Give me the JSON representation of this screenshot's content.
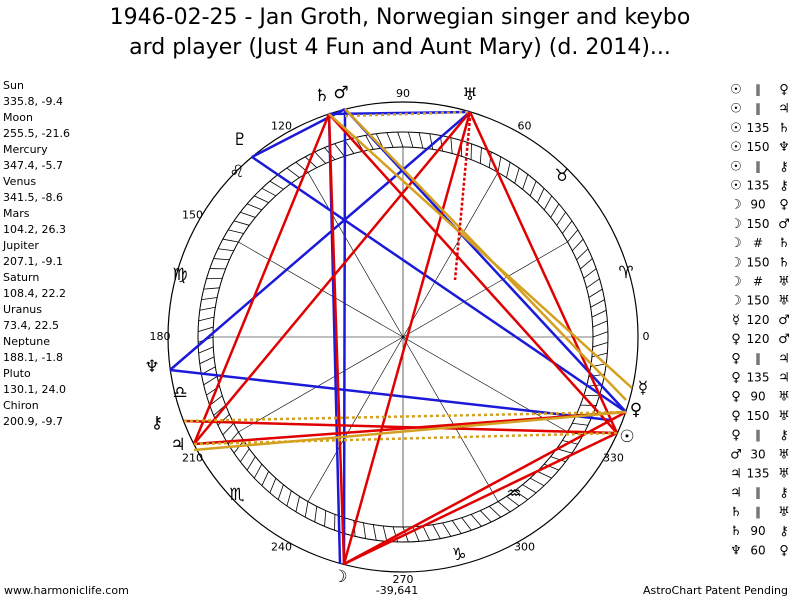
{
  "header": {
    "title_line1": "1946-02-25 - Jan Groth, Norwegian singer and keybo",
    "title_line2": "ard player (Just 4 Fun and Aunt Mary) (d. 2014)..."
  },
  "planets": [
    {
      "name": "Sun",
      "position": "335.8, -9.4"
    },
    {
      "name": "Moon",
      "position": "255.5, -21.6"
    },
    {
      "name": "Mercury",
      "position": "347.4, -5.7"
    },
    {
      "name": "Venus",
      "position": "341.5, -8.6"
    },
    {
      "name": "Mars",
      "position": "104.2, 26.3"
    },
    {
      "name": "Jupiter",
      "position": "207.1, -9.1"
    },
    {
      "name": "Saturn",
      "position": "108.4, 22.2"
    },
    {
      "name": "Uranus",
      "position": "73.4, 22.5"
    },
    {
      "name": "Neptune",
      "position": "188.1, -1.8"
    },
    {
      "name": "Pluto",
      "position": "130.1, 24.0"
    },
    {
      "name": "Chiron",
      "position": "200.9, -9.7"
    }
  ],
  "aspects": [
    {
      "planet1": "☉",
      "aspect": "∥",
      "planet2": "♀"
    },
    {
      "planet1": "☉",
      "aspect": "∥",
      "planet2": "♃"
    },
    {
      "planet1": "☉",
      "aspect": "135",
      "planet2": "♄"
    },
    {
      "planet1": "☉",
      "aspect": "150",
      "planet2": "♆"
    },
    {
      "planet1": "☉",
      "aspect": "∥",
      "planet2": "⚷"
    },
    {
      "planet1": "☉",
      "aspect": "135",
      "planet2": "⚷"
    },
    {
      "planet1": "☽",
      "aspect": "90",
      "planet2": "♀"
    },
    {
      "planet1": "☽",
      "aspect": "150",
      "planet2": "♂"
    },
    {
      "planet1": "☽",
      "aspect": "#",
      "planet2": "♄"
    },
    {
      "planet1": "☽",
      "aspect": "150",
      "planet2": "♄"
    },
    {
      "planet1": "☽",
      "aspect": "#",
      "planet2": "♅"
    },
    {
      "planet1": "☽",
      "aspect": "150",
      "planet2": "♅"
    },
    {
      "planet1": "☿",
      "aspect": "120",
      "planet2": "♂"
    },
    {
      "planet1": "♀",
      "aspect": "120",
      "planet2": "♂"
    },
    {
      "planet1": "♀",
      "aspect": "∥",
      "planet2": "♃"
    },
    {
      "planet1": "♀",
      "aspect": "135",
      "planet2": "♃"
    },
    {
      "planet1": "♀",
      "aspect": "90",
      "planet2": "♅"
    },
    {
      "planet1": "♀",
      "aspect": "150",
      "planet2": "♅"
    },
    {
      "planet1": "♀",
      "aspect": "∥",
      "planet2": "⚷"
    },
    {
      "planet1": "♂",
      "aspect": "30",
      "planet2": "♅"
    },
    {
      "planet1": "♃",
      "aspect": "135",
      "planet2": "♅"
    },
    {
      "planet1": "♃",
      "aspect": "∥",
      "planet2": "⚷"
    },
    {
      "planet1": "♄",
      "aspect": "∥",
      "planet2": "♅"
    },
    {
      "planet1": "♄",
      "aspect": "90",
      "planet2": "⚷"
    },
    {
      "planet1": "♆",
      "aspect": "60",
      "planet2": "♀"
    }
  ],
  "wheel": {
    "degree_labels": [
      90,
      60,
      120,
      150,
      180,
      210,
      240,
      270,
      300,
      330,
      0
    ],
    "signs": [
      "♈",
      "♉",
      "♌",
      "♍",
      "♎",
      "♏",
      "♑",
      "♒"
    ],
    "planet_glyphs": [
      "♄",
      "♂",
      "♅",
      "♇",
      "♆",
      "⚷",
      "♃",
      "☽",
      "☉",
      "♀",
      "☿"
    ],
    "center_label": "-39,641"
  },
  "footer": {
    "site": "www.harmoniclife.com",
    "notice": "AstroChart Patent Pending"
  }
}
